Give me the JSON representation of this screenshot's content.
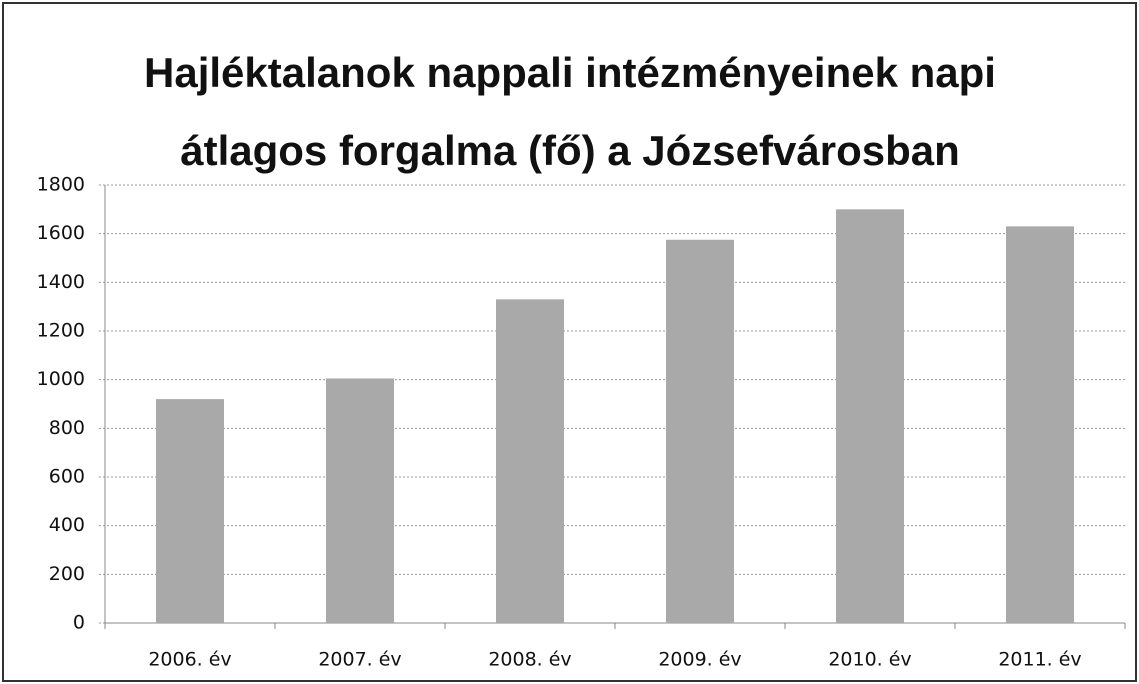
{
  "chart_data": {
    "type": "bar",
    "title": [
      "Hajléktalanok nappali intézményeinek napi",
      "átlagos forgalma (fő) a Józsefvárosban"
    ],
    "categories": [
      "2006. év",
      "2007. év",
      "2008. év",
      "2009. év",
      "2010. év",
      "2011. év"
    ],
    "values": [
      920,
      1005,
      1330,
      1575,
      1700,
      1630
    ],
    "color": "#a9a9a9",
    "ylim": [
      0,
      1800
    ],
    "yticks": [
      0,
      200,
      400,
      600,
      800,
      1000,
      1200,
      1400,
      1600,
      1800
    ],
    "grid": true
  }
}
